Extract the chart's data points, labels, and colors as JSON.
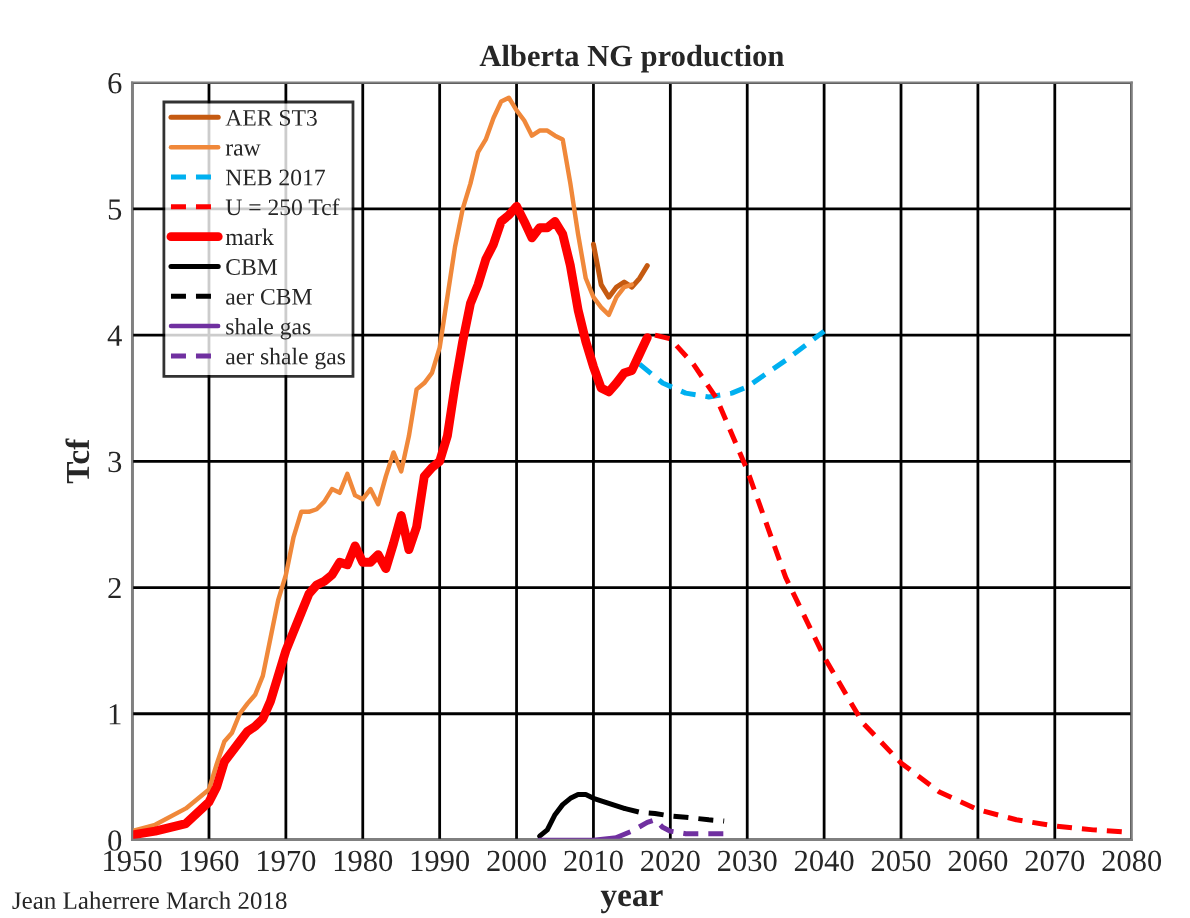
{
  "chart_data": {
    "type": "line",
    "title": "Alberta NG production",
    "xlabel": "year",
    "ylabel": "Tcf",
    "annotations": [
      "Jean Laherrere March 2018"
    ],
    "xlim": [
      1950,
      2080
    ],
    "xticks": [
      1950,
      1960,
      1970,
      1980,
      1990,
      2000,
      2010,
      2020,
      2030,
      2040,
      2050,
      2060,
      2070,
      2080
    ],
    "ylim": [
      0,
      6
    ],
    "yticks": [
      0,
      1,
      2,
      3,
      4,
      5,
      6
    ],
    "grid": true,
    "legend": "top left",
    "marker": "none",
    "series": [
      {
        "name": "AER ST3",
        "color": "#c55a11",
        "line_style": "solid",
        "x": [
          2010,
          2011,
          2012,
          2013,
          2014,
          2015,
          2016,
          2017
        ],
        "values": [
          4.72,
          4.4,
          4.3,
          4.38,
          4.42,
          4.38,
          4.45,
          4.55
        ]
      },
      {
        "name": "raw",
        "color": "#f0883a",
        "line_style": "solid",
        "x": [
          1950,
          1953,
          1957,
          1960,
          1961,
          1962,
          1963,
          1964,
          1965,
          1966,
          1967,
          1968,
          1969,
          1970,
          1971,
          1972,
          1973,
          1974,
          1975,
          1976,
          1977,
          1978,
          1979,
          1980,
          1981,
          1982,
          1983,
          1984,
          1985,
          1986,
          1987,
          1988,
          1989,
          1990,
          1991,
          1992,
          1993,
          1994,
          1995,
          1996,
          1997,
          1998,
          1999,
          2000,
          2001,
          2002,
          2003,
          2004,
          2005,
          2006,
          2007,
          2008,
          2009,
          2010,
          2011,
          2012,
          2013,
          2014,
          2015
        ],
        "values": [
          0.07,
          0.12,
          0.25,
          0.4,
          0.6,
          0.78,
          0.85,
          1.0,
          1.08,
          1.15,
          1.3,
          1.6,
          1.9,
          2.1,
          2.4,
          2.6,
          2.6,
          2.62,
          2.68,
          2.78,
          2.75,
          2.9,
          2.73,
          2.7,
          2.78,
          2.66,
          2.88,
          3.07,
          2.92,
          3.2,
          3.57,
          3.62,
          3.7,
          3.9,
          4.3,
          4.7,
          5.0,
          5.2,
          5.45,
          5.55,
          5.72,
          5.85,
          5.88,
          5.78,
          5.7,
          5.58,
          5.62,
          5.62,
          5.58,
          5.55,
          5.2,
          4.8,
          4.45,
          4.3,
          4.22,
          4.16,
          4.3,
          4.38,
          4.4
        ]
      },
      {
        "name": "NEB 2017",
        "color": "#00b0f0",
        "line_style": "dashed",
        "x": [
          2016,
          2019,
          2022,
          2025,
          2028,
          2030,
          2035,
          2040
        ],
        "values": [
          3.77,
          3.62,
          3.54,
          3.51,
          3.54,
          3.59,
          3.8,
          4.03
        ]
      },
      {
        "name": "U = 250 Tcf",
        "color": "#ff0000",
        "line_style": "dashed",
        "x": [
          2018,
          2020,
          2023,
          2026,
          2030,
          2035,
          2040,
          2045,
          2050,
          2055,
          2060,
          2065,
          2070,
          2075,
          2080
        ],
        "values": [
          4.0,
          3.97,
          3.77,
          3.5,
          2.93,
          2.08,
          1.45,
          0.93,
          0.61,
          0.38,
          0.24,
          0.16,
          0.11,
          0.08,
          0.06
        ]
      },
      {
        "name": "mark",
        "color": "#ff0000",
        "line_style": "solid",
        "x": [
          1950,
          1953,
          1957,
          1960,
          1961,
          1962,
          1963,
          1964,
          1965,
          1966,
          1967,
          1968,
          1969,
          1970,
          1971,
          1972,
          1973,
          1974,
          1975,
          1976,
          1977,
          1978,
          1979,
          1980,
          1981,
          1982,
          1983,
          1984,
          1985,
          1986,
          1987,
          1988,
          1989,
          1990,
          1991,
          1992,
          1993,
          1994,
          1995,
          1996,
          1997,
          1998,
          1999,
          2000,
          2001,
          2002,
          2003,
          2004,
          2005,
          2006,
          2007,
          2008,
          2009,
          2010,
          2011,
          2012,
          2013,
          2014,
          2015,
          2016,
          2017
        ],
        "values": [
          0.04,
          0.07,
          0.13,
          0.3,
          0.42,
          0.62,
          0.7,
          0.78,
          0.86,
          0.9,
          0.96,
          1.1,
          1.3,
          1.5,
          1.65,
          1.8,
          1.95,
          2.02,
          2.05,
          2.1,
          2.2,
          2.18,
          2.33,
          2.2,
          2.2,
          2.26,
          2.15,
          2.35,
          2.57,
          2.3,
          2.48,
          2.88,
          2.95,
          3.0,
          3.2,
          3.6,
          3.95,
          4.25,
          4.4,
          4.6,
          4.72,
          4.9,
          4.95,
          5.02,
          4.9,
          4.77,
          4.85,
          4.85,
          4.9,
          4.8,
          4.55,
          4.2,
          3.95,
          3.75,
          3.58,
          3.55,
          3.62,
          3.7,
          3.72,
          3.85,
          3.98
        ]
      },
      {
        "name": "CBM",
        "color": "#000000",
        "line_style": "solid",
        "x": [
          2003,
          2004,
          2005,
          2006,
          2007,
          2008,
          2009,
          2010,
          2012,
          2014
        ],
        "values": [
          0.03,
          0.08,
          0.2,
          0.28,
          0.33,
          0.36,
          0.36,
          0.33,
          0.29,
          0.25
        ]
      },
      {
        "name": "aer CBM",
        "color": "#000000",
        "line_style": "dashed",
        "x": [
          2014,
          2016,
          2018,
          2020,
          2022,
          2025,
          2027
        ],
        "values": [
          0.25,
          0.22,
          0.21,
          0.19,
          0.18,
          0.16,
          0.15
        ]
      },
      {
        "name": "shale gas",
        "color": "#7030a0",
        "line_style": "solid",
        "x": [
          2003,
          2010,
          2013
        ],
        "values": [
          0,
          0,
          0.02
        ]
      },
      {
        "name": "aer shale gas",
        "color": "#7030a0",
        "line_style": "dashed",
        "x": [
          2013,
          2015,
          2017,
          2018,
          2019,
          2020,
          2022,
          2027
        ],
        "values": [
          0.02,
          0.07,
          0.14,
          0.16,
          0.1,
          0.07,
          0.05,
          0.05
        ]
      }
    ]
  }
}
